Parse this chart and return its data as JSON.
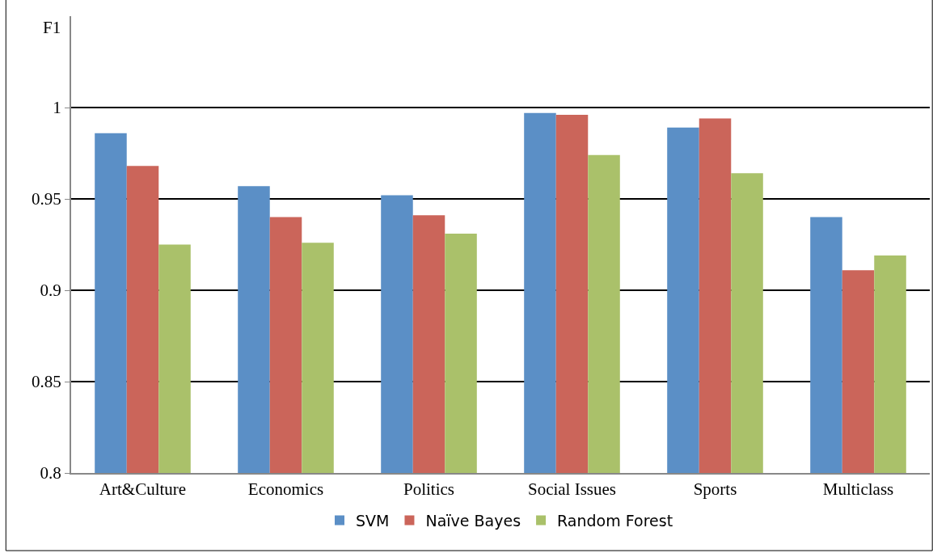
{
  "chart_data": {
    "type": "bar",
    "ylabel": "F1",
    "categories": [
      "Art&Culture",
      "Economics",
      "Politics",
      "Social Issues",
      "Sports",
      "Multiclass"
    ],
    "series": [
      {
        "name": "SVM",
        "color": "#5b8fc6",
        "values": [
          0.986,
          0.957,
          0.952,
          0.997,
          0.989,
          0.94
        ]
      },
      {
        "name": "Naïve Bayes",
        "color": "#cb655a",
        "values": [
          0.968,
          0.94,
          0.941,
          0.996,
          0.994,
          0.911
        ]
      },
      {
        "name": "Random Forest",
        "color": "#aac16a",
        "values": [
          0.925,
          0.926,
          0.931,
          0.974,
          0.964,
          0.919
        ]
      }
    ],
    "ylim": [
      0.8,
      1.05
    ],
    "yticks": [
      0.8,
      0.85,
      0.9,
      0.95,
      1
    ],
    "grid": "y",
    "legend": "bottom"
  }
}
